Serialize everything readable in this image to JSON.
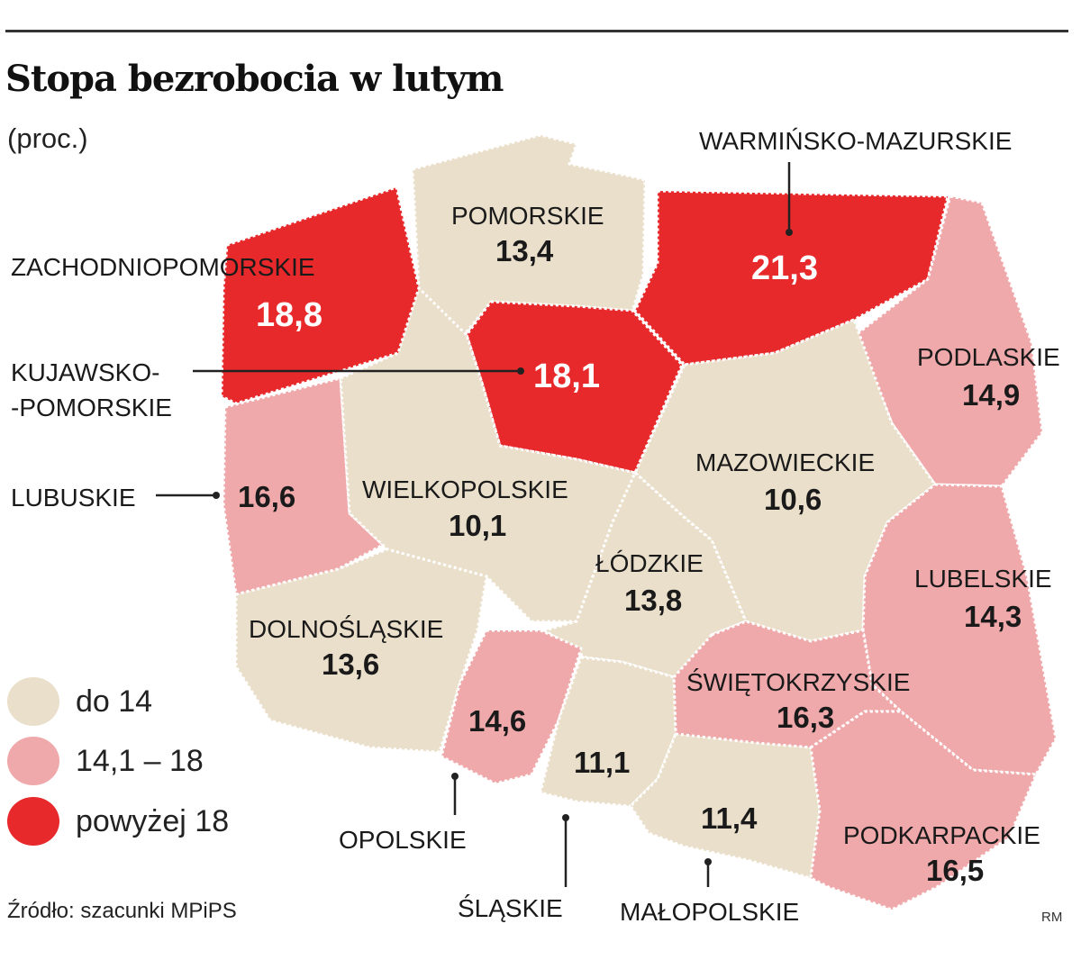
{
  "title": "Stopa bezrobocia w lutym",
  "subtitle": "(proc.)",
  "colors": {
    "low": "#eadfca",
    "mid": "#f0a9ab",
    "high": "#e8292b",
    "outline": "#ffffff"
  },
  "legend": [
    {
      "label": "do 14",
      "color": "#eadfca"
    },
    {
      "label": "14,1 – 18",
      "color": "#f0a9ab"
    },
    {
      "label": "powyżej 18",
      "color": "#e8292b"
    }
  ],
  "regions": {
    "zachodniopomorskie": {
      "name": "ZACHODNIOPOMORSKIE",
      "value": "18,8",
      "category": "high"
    },
    "pomorskie": {
      "name": "POMORSKIE",
      "value": "13,4",
      "category": "low"
    },
    "warminsko": {
      "name": "WARMIŃSKO-MAZURSKIE",
      "value": "21,3",
      "category": "high"
    },
    "kujawsko": {
      "name_line1": "KUJAWSKO-",
      "name_line2": "-POMORSKIE",
      "value": "18,1",
      "category": "high"
    },
    "podlaskie": {
      "name": "PODLASKIE",
      "value": "14,9",
      "category": "mid"
    },
    "lubuskie": {
      "name": "LUBUSKIE",
      "value": "16,6",
      "category": "mid"
    },
    "wielkopolskie": {
      "name": "WIELKOPOLSKIE",
      "value": "10,1",
      "category": "low"
    },
    "mazowieckie": {
      "name": "MAZOWIECKIE",
      "value": "10,6",
      "category": "low"
    },
    "lodzkie": {
      "name": "ŁÓDZKIE",
      "value": "13,8",
      "category": "low"
    },
    "lubelskie": {
      "name": "LUBELSKIE",
      "value": "14,3",
      "category": "mid"
    },
    "dolnoslaskie": {
      "name": "DOLNOŚLĄSKIE",
      "value": "13,6",
      "category": "low"
    },
    "swietokrzyskie": {
      "name": "ŚWIĘTOKRZYSKIE",
      "value": "16,3",
      "category": "mid"
    },
    "opolskie": {
      "name": "OPOLSKIE",
      "value": "14,6",
      "category": "mid"
    },
    "slaskie": {
      "name": "ŚLĄSKIE",
      "value": "11,1",
      "category": "low"
    },
    "malopolskie": {
      "name": "MAŁOPOLSKIE",
      "value": "11,4",
      "category": "low"
    },
    "podkarpackie": {
      "name": "PODKARPACKIE",
      "value": "16,5",
      "category": "mid"
    }
  },
  "source": "Źródło: szacunki MPiPS",
  "credit": "RM"
}
